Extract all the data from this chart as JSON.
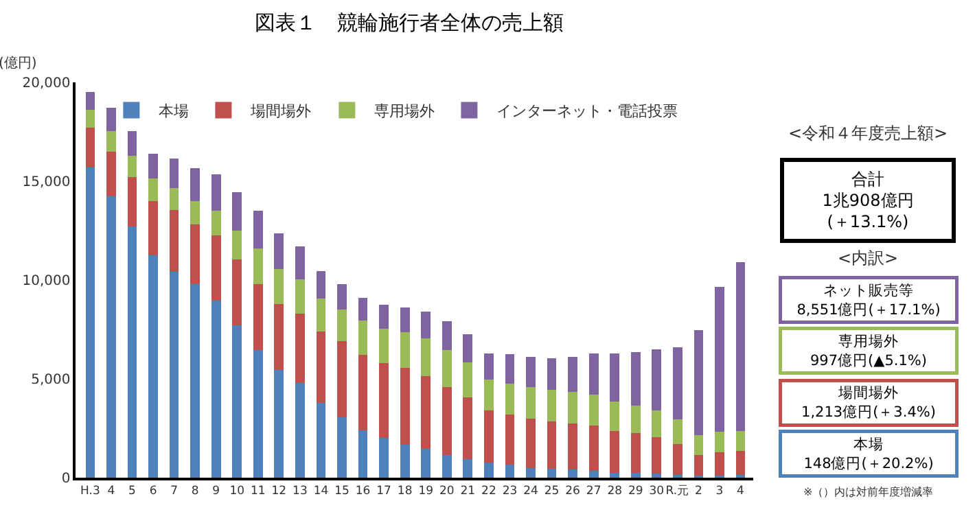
{
  "chart_data": {
    "type": "bar",
    "stacked": true,
    "title": "図表１　競輪施行者全体の売上額",
    "ylabel": "(億円)",
    "categories": [
      "H.3",
      "4",
      "5",
      "6",
      "7",
      "8",
      "9",
      "10",
      "11",
      "12",
      "13",
      "14",
      "15",
      "16",
      "17",
      "18",
      "19",
      "20",
      "21",
      "22",
      "23",
      "24",
      "25",
      "26",
      "27",
      "28",
      "29",
      "30",
      "R.元",
      "2",
      "3",
      "4"
    ],
    "series": [
      {
        "name": "本場",
        "color": "#4f81bd",
        "values": [
          15700,
          14250,
          12700,
          11250,
          10400,
          9800,
          8950,
          7700,
          6450,
          5450,
          4800,
          3800,
          3050,
          2400,
          2000,
          1650,
          1450,
          1150,
          950,
          750,
          650,
          500,
          450,
          400,
          350,
          250,
          250,
          200,
          150,
          100,
          120,
          148
        ]
      },
      {
        "name": "場間場外",
        "color": "#c0504d",
        "values": [
          2000,
          2250,
          2500,
          2750,
          3150,
          3000,
          3300,
          3350,
          3350,
          3350,
          3500,
          3600,
          3850,
          3800,
          3800,
          3900,
          3700,
          3450,
          3100,
          2650,
          2550,
          2500,
          2400,
          2350,
          2300,
          2100,
          2000,
          1850,
          1550,
          1050,
          1170,
          1213
        ]
      },
      {
        "name": "専用場外",
        "color": "#9bbb59",
        "values": [
          900,
          1050,
          1100,
          1150,
          1100,
          1200,
          1250,
          1450,
          1800,
          1750,
          1750,
          1650,
          1600,
          1750,
          1750,
          1800,
          1900,
          1850,
          1800,
          1550,
          1550,
          1600,
          1600,
          1600,
          1550,
          1500,
          1400,
          1350,
          1250,
          1000,
          1050,
          997
        ]
      },
      {
        "name": "インターネット・電話投票",
        "color": "#8064a2",
        "values": [
          900,
          1150,
          1250,
          1250,
          1500,
          1650,
          1850,
          1950,
          1900,
          1800,
          1650,
          1400,
          1300,
          1150,
          1200,
          1250,
          1350,
          1450,
          1400,
          1350,
          1500,
          1500,
          1600,
          1750,
          2100,
          2450,
          2700,
          3100,
          3650,
          5300,
          7300,
          8551
        ]
      }
    ],
    "ylim": [
      0,
      20000
    ],
    "yticks": [
      {
        "value": 0,
        "label": "0"
      },
      {
        "value": 5000,
        "label": "5,000"
      },
      {
        "value": 10000,
        "label": "10,000"
      },
      {
        "value": 15000,
        "label": "15,000"
      },
      {
        "value": 20000,
        "label": "20,000"
      }
    ],
    "grid": false,
    "legend": "top",
    "annotations": [
      "<令和４年度売上額>",
      "合計\n1兆908億円\n(＋13.1%)",
      "<内訳>",
      "ネット販売等\n8,551億円(＋17.1%)",
      "専用場外\n997億円(▲5.1%)",
      "場間場外\n1,213億円(＋3.4%)",
      "本場\n148億円(＋20.2%)",
      "※（）内は対前年度増減率"
    ]
  }
}
